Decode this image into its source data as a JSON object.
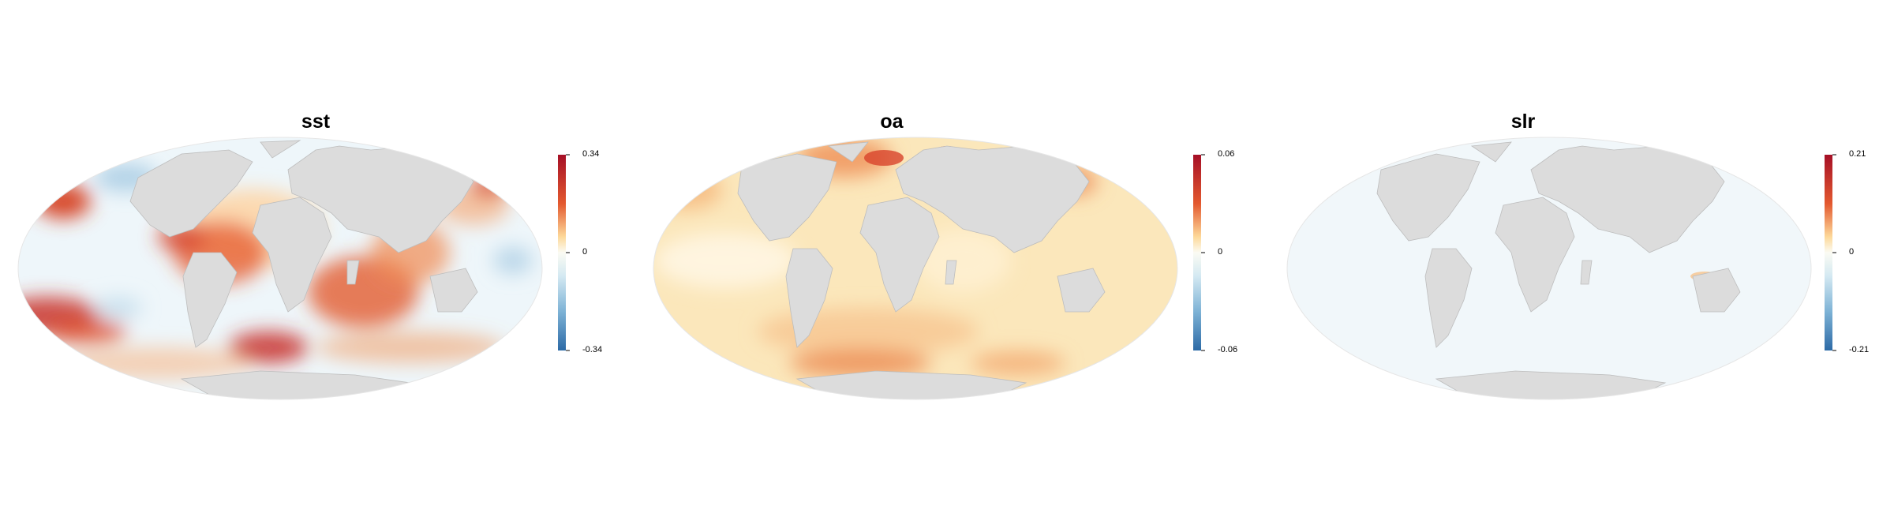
{
  "colors": {
    "land": "#dcdcdc",
    "land_stroke": "#bdbdbd",
    "diverging_low": "#2c6aa6",
    "diverging_mid": "#f7fbff",
    "diverging_high": "#a50f26"
  },
  "maps": [
    {
      "title": "sst",
      "scale_max": "0.34",
      "scale_mid": "0",
      "scale_min": "-0.34",
      "ocean_tone": "mixed-warm"
    },
    {
      "title": "oa",
      "scale_max": "0.06",
      "scale_mid": "0",
      "scale_min": "-0.06",
      "ocean_tone": "pale-yellow"
    },
    {
      "title": "slr",
      "scale_max": "0.21",
      "scale_mid": "0",
      "scale_min": "-0.21",
      "ocean_tone": "near-zero"
    }
  ]
}
